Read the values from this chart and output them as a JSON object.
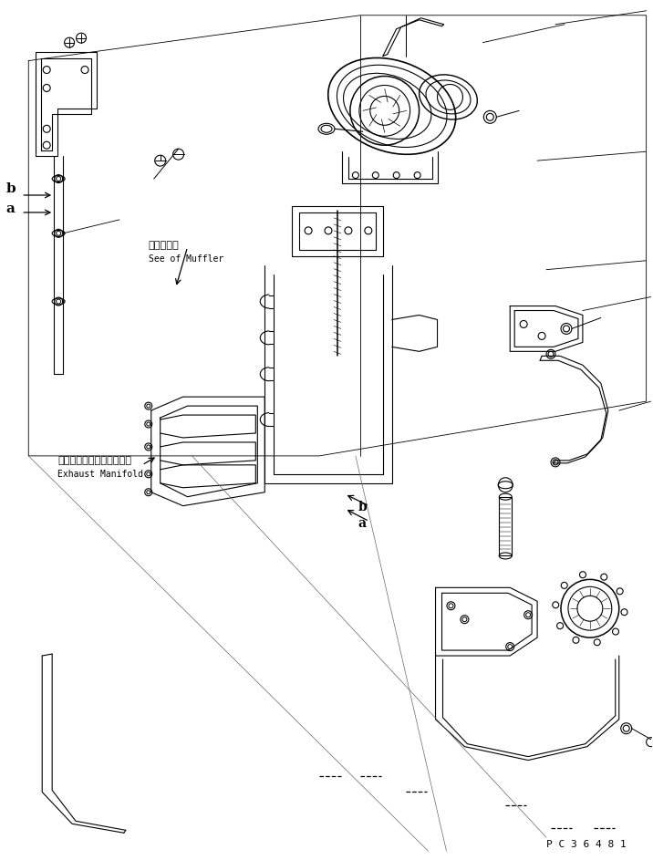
{
  "figure_width": 7.16,
  "figure_height": 9.43,
  "dpi": 100,
  "bg_color": "#ffffff",
  "line_color": "#000000",
  "line_width": 0.8,
  "part_code": "P C 3 6 4 8 1",
  "annotation_text_1": "マフラ参照",
  "annotation_text_2": "See of Muffler",
  "annotation_text_3": "エキゾーストマニホールド",
  "annotation_text_4": "Exhaust Manifold",
  "label_a": "a",
  "label_b": "b",
  "font_size_small": 7,
  "font_size_label": 9
}
